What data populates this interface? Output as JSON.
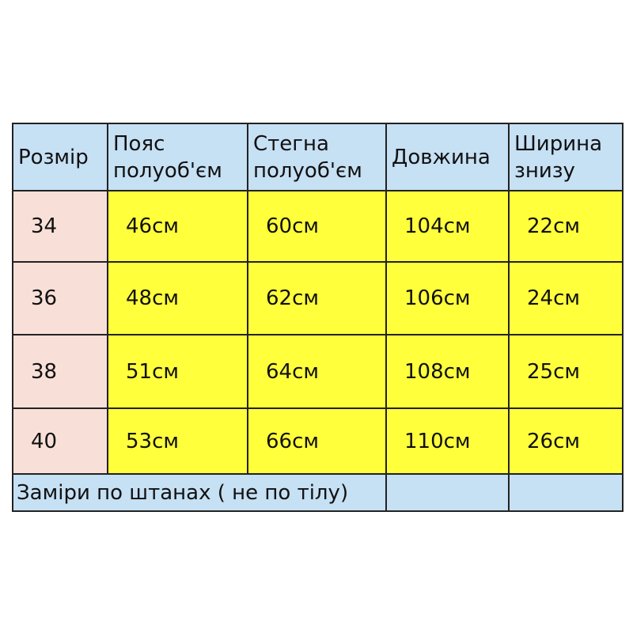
{
  "colors": {
    "header": "#c6e0f4",
    "size_column": "#f8e0d8",
    "values": "#ffff3c",
    "footer": "#c6e0f4"
  },
  "headers": [
    [
      "Розмір"
    ],
    [
      "Пояс",
      "полуоб'єм"
    ],
    [
      "Стегна",
      "полуоб'єм"
    ],
    [
      "Довжина"
    ],
    [
      "Ширина",
      "знизу"
    ]
  ],
  "rows": [
    [
      "34",
      "46см",
      "60см",
      "104см",
      "22см"
    ],
    [
      "36",
      "48см",
      "62см",
      "106см",
      "24см"
    ],
    [
      "38",
      "51см",
      "64см",
      "108см",
      "25см"
    ],
    [
      "40",
      "53см",
      "66см",
      "110см",
      "26см"
    ]
  ],
  "footer_note": "Заміри по штанах ( не по тілу)"
}
